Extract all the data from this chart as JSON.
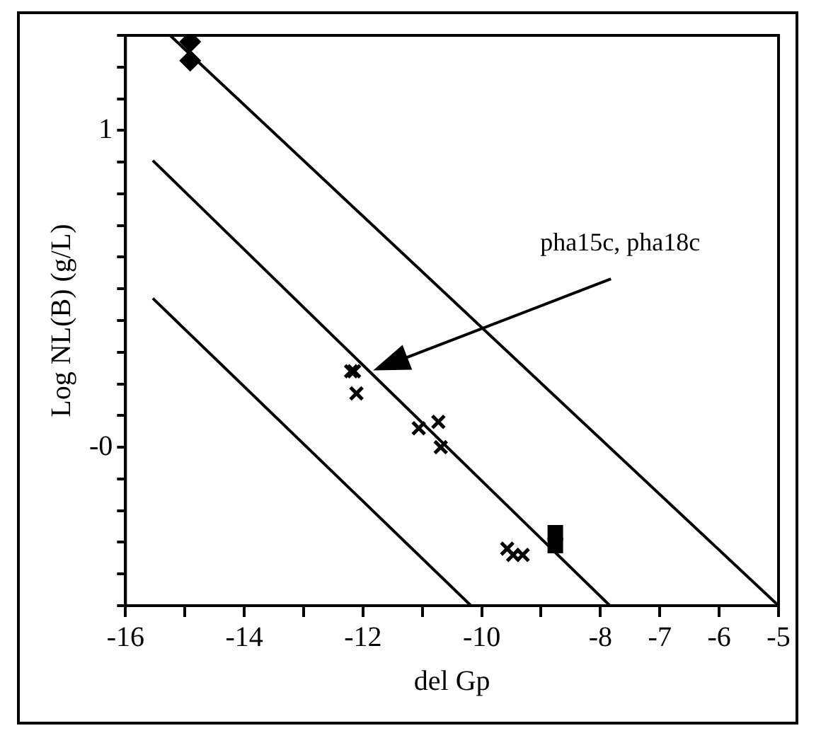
{
  "chart_data": {
    "type": "scatter",
    "xlabel": "del Gp",
    "ylabel": "Log NL(B) (g/L)",
    "xlim": [
      -16,
      -5
    ],
    "ylim": [
      -0.5,
      1.3
    ],
    "xticks": [
      -16,
      {
        "value": -15,
        "label": null
      },
      -14,
      {
        "value": -13,
        "label": null
      },
      -12,
      {
        "value": -11,
        "label": null
      },
      -10,
      {
        "value": -9,
        "label": null
      },
      -8,
      -7,
      -6,
      -5
    ],
    "yticks": [
      {
        "value": -0.5,
        "label": null
      },
      {
        "value": -0.4,
        "label": null
      },
      {
        "value": -0.3,
        "label": null
      },
      {
        "value": -0.2,
        "label": null
      },
      {
        "value": -0.1,
        "label": null
      },
      {
        "value": 0,
        "label": "-0"
      },
      {
        "value": 0.1,
        "label": null
      },
      {
        "value": 0.2,
        "label": null
      },
      {
        "value": 0.3,
        "label": null
      },
      {
        "value": 0.4,
        "label": null
      },
      {
        "value": 0.5,
        "label": null
      },
      {
        "value": 0.6,
        "label": null
      },
      {
        "value": 0.7,
        "label": null
      },
      {
        "value": 0.8,
        "label": null
      },
      {
        "value": 0.9,
        "label": null
      },
      1,
      {
        "value": 1.1,
        "label": null
      },
      {
        "value": 1.2,
        "label": null
      },
      {
        "value": 1.3,
        "label": null
      }
    ],
    "grid": false,
    "legend": false,
    "annotations": [
      "pha15c, pha18c"
    ],
    "series": [
      {
        "type": "line",
        "color": "#000000",
        "marker": "none",
        "x": [
          -15.25,
          -5.0
        ],
        "values": [
          1.3,
          -0.5
        ]
      },
      {
        "type": "line",
        "color": "#000000",
        "marker": "none",
        "x": [
          -15.54,
          -7.84
        ],
        "values": [
          0.905,
          -0.5
        ]
      },
      {
        "type": "line",
        "color": "#000000",
        "marker": "none",
        "x": [
          -15.54,
          -10.18
        ],
        "values": [
          0.47,
          -0.5
        ]
      },
      {
        "color": "#000000",
        "marker": "diamond",
        "x": [
          -14.91,
          -14.91
        ],
        "values": [
          1.28,
          1.22
        ]
      },
      {
        "color": "#000000",
        "marker": "cross",
        "x": [
          -12.15,
          -12.2,
          -12.11,
          -11.06,
          -10.73,
          -10.69,
          -9.57,
          -9.47,
          -9.31
        ],
        "values": [
          0.24,
          0.24,
          0.17,
          0.06,
          0.08,
          0.0,
          -0.32,
          -0.34,
          -0.34
        ]
      },
      {
        "color": "#000000",
        "marker": "square",
        "x": [
          -8.76,
          -8.76
        ],
        "values": [
          -0.27,
          -0.31
        ]
      }
    ]
  }
}
